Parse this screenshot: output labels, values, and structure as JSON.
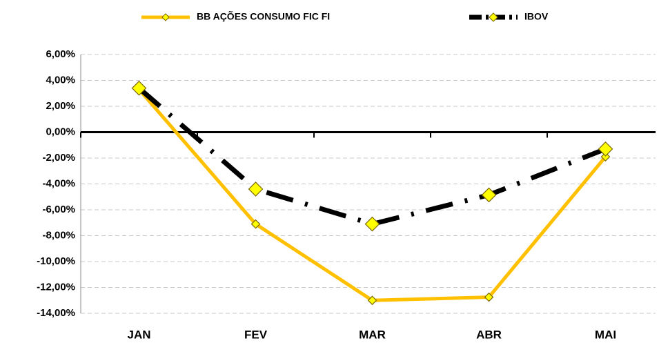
{
  "chart_data": {
    "type": "line",
    "categories": [
      "JAN",
      "FEV",
      "MAR",
      "ABR",
      "MAI"
    ],
    "series": [
      {
        "name": "BB AÇÕES CONSUMO FIC FI",
        "color": "#FFC000",
        "line_style": "solid",
        "values": [
          3.3,
          -7.1,
          -13.0,
          -12.75,
          -1.9
        ]
      },
      {
        "name": "IBOV",
        "color": "#000000",
        "line_style": "dashdot",
        "values": [
          3.4,
          -4.4,
          -7.1,
          -4.85,
          -1.3
        ]
      }
    ],
    "ylim": [
      -14,
      6
    ],
    "yticks": [
      {
        "value": -14,
        "label": "-14,00%"
      },
      {
        "value": -12,
        "label": "-12,00%"
      },
      {
        "value": -10,
        "label": "-10,00%"
      },
      {
        "value": -8,
        "label": "-8,00%"
      },
      {
        "value": -6,
        "label": "-6,00%"
      },
      {
        "value": -4,
        "label": "-4,00%"
      },
      {
        "value": -2,
        "label": "-2,00%"
      },
      {
        "value": 0,
        "label": "0,00%"
      },
      {
        "value": 2,
        "label": "2,00%"
      },
      {
        "value": 4,
        "label": "4,00%"
      },
      {
        "value": 6,
        "label": "6,00%"
      }
    ],
    "grid": true,
    "legend": "top",
    "marker_color": "#FFFF00"
  }
}
